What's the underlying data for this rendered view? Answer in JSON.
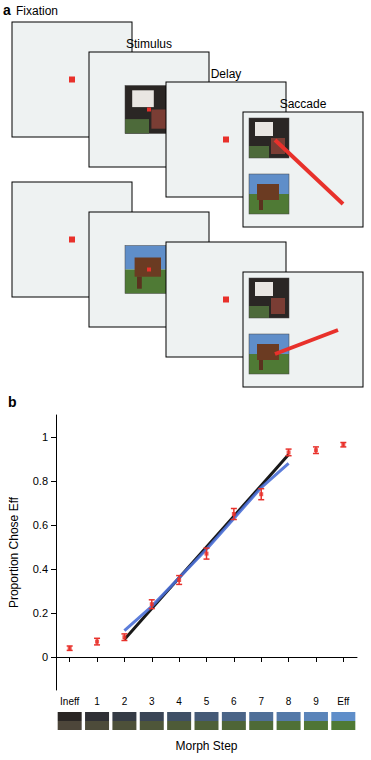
{
  "panel_a": {
    "letter": "a",
    "labels": [
      "Fixation",
      "Stimulus",
      "Delay",
      "Saccade"
    ]
  },
  "chart_data": {
    "type": "scatter",
    "letter": "b",
    "y_label": "Proportion Chose Eff",
    "x_label": "Morph Step",
    "categories": [
      "Ineff",
      "1",
      "2",
      "3",
      "4",
      "5",
      "6",
      "7",
      "8",
      "9",
      "Eff"
    ],
    "ylim": [
      -0.15,
      1.1
    ],
    "yticks": [
      0,
      0.2,
      0.4,
      0.6,
      0.8,
      1
    ],
    "grid": false,
    "series": [
      {
        "type": "scatter",
        "color": "#e8312b",
        "marker": "square",
        "values": [
          0.04,
          0.07,
          0.09,
          0.24,
          0.35,
          0.47,
          0.65,
          0.74,
          0.93,
          0.94,
          0.965
        ],
        "errors": [
          0.01,
          0.015,
          0.015,
          0.02,
          0.02,
          0.025,
          0.025,
          0.025,
          0.015,
          0.015,
          0.01
        ]
      },
      {
        "type": "line",
        "color": "#000000",
        "values": [
          null,
          null,
          0.08,
          0.22,
          0.36,
          0.5,
          0.64,
          0.78,
          0.92,
          null,
          null
        ]
      },
      {
        "type": "line",
        "color": "#4a6fd6",
        "values": [
          null,
          null,
          0.12,
          0.23,
          0.36,
          0.49,
          0.63,
          0.77,
          0.88,
          null,
          null
        ]
      }
    ]
  }
}
